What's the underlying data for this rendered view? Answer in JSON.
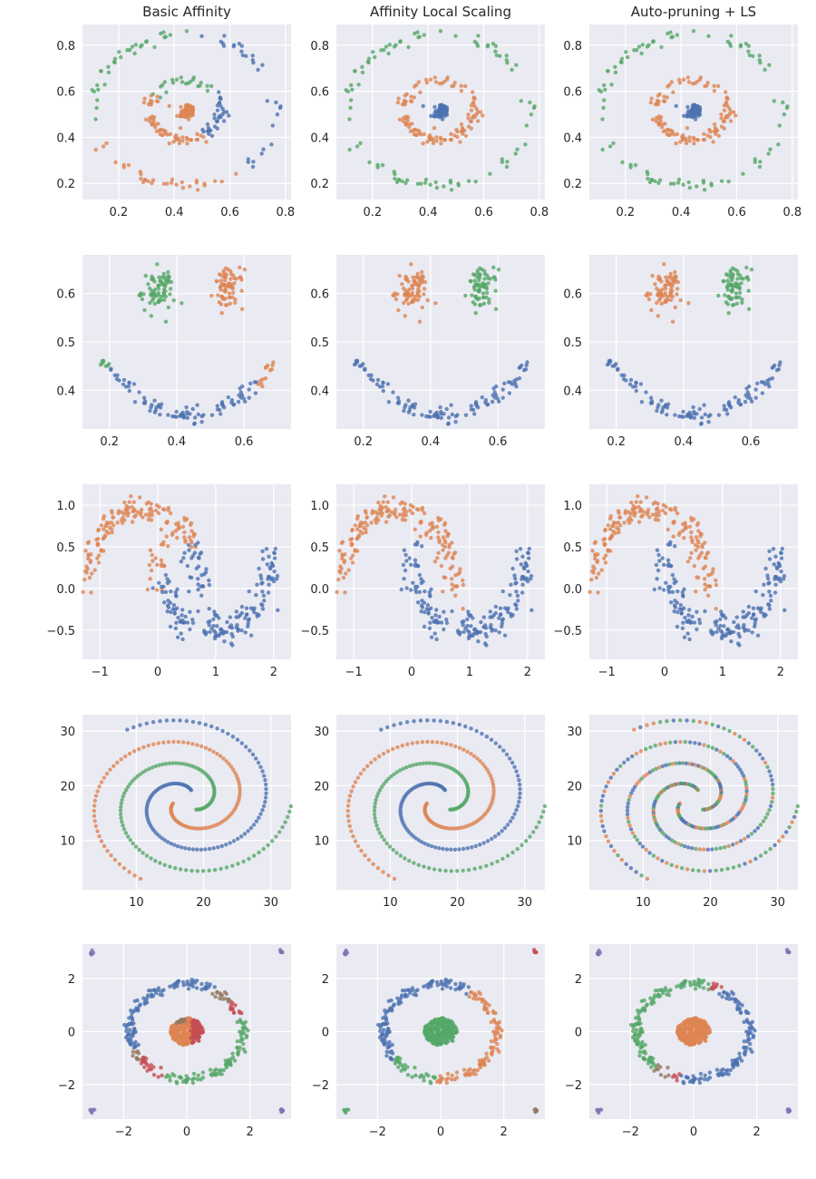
{
  "colors": {
    "background": "#EAEAF2",
    "grid": "#FFFFFF",
    "blue": "#4C72B0",
    "orange": "#DD8452",
    "green": "#55A868",
    "red": "#C44E52",
    "purple": "#8172B3",
    "brown": "#937860"
  },
  "chart_data": {
    "type": "scatter",
    "grid": true,
    "column_titles": [
      "Basic Affinity",
      "Affinity Local Scaling",
      "Auto-pruning + LS"
    ],
    "rows": [
      {
        "dataset": "concentric rings with central blob",
        "xlim": [
          0.07,
          0.82
        ],
        "ylim": [
          0.13,
          0.89
        ],
        "xticks": [
          "0.2",
          "0.4",
          "0.6",
          "0.8"
        ],
        "yticks": [
          "0.2",
          "0.4",
          "0.6",
          "0.8"
        ],
        "panels": [
          {
            "title": "Basic Affinity",
            "clusters": [
              {
                "color": "blue",
                "region": "center blob + right half of inner ring + right arc of outer ring"
              },
              {
                "color": "orange",
                "region": "lower-left arc of outer ring + lower half of inner ring + center blob"
              },
              {
                "color": "green",
                "region": "upper-left arc of outer ring + top of inner ring"
              }
            ]
          },
          {
            "title": "Affinity Local Scaling",
            "clusters": [
              {
                "color": "blue",
                "region": "center blob"
              },
              {
                "color": "orange",
                "region": "inner ring"
              },
              {
                "color": "green",
                "region": "outer ring"
              }
            ]
          },
          {
            "title": "Auto-pruning + LS",
            "clusters": [
              {
                "color": "blue",
                "region": "center blob"
              },
              {
                "color": "orange",
                "region": "inner ring"
              },
              {
                "color": "green",
                "region": "outer ring"
              }
            ]
          }
        ]
      },
      {
        "dataset": "smile: two blobs above a U-shaped arc",
        "xlim": [
          0.12,
          0.74
        ],
        "ylim": [
          0.32,
          0.68
        ],
        "xticks": [
          "0.2",
          "0.4",
          "0.6"
        ],
        "yticks": [
          "0.4",
          "0.5",
          "0.6"
        ],
        "panels": [
          {
            "title": "Basic Affinity",
            "clusters": [
              {
                "color": "blue",
                "region": "bottom of arc"
              },
              {
                "color": "orange",
                "region": "right blob (0.55,0.61) + right arm of arc"
              },
              {
                "color": "green",
                "region": "left blob (0.34,0.60) + left arm of arc"
              }
            ]
          },
          {
            "title": "Affinity Local Scaling",
            "clusters": [
              {
                "color": "blue",
                "region": "whole arc"
              },
              {
                "color": "orange",
                "region": "left blob (0.34,0.60)"
              },
              {
                "color": "green",
                "region": "right blob (0.55,0.61)"
              }
            ]
          },
          {
            "title": "Auto-pruning + LS",
            "clusters": [
              {
                "color": "blue",
                "region": "whole arc"
              },
              {
                "color": "orange",
                "region": "left blob (0.34,0.60)"
              },
              {
                "color": "green",
                "region": "right blob (0.55,0.61)"
              }
            ]
          }
        ]
      },
      {
        "dataset": "two interleaving moons",
        "xlim": [
          -1.3,
          2.3
        ],
        "ylim": [
          -0.85,
          1.25
        ],
        "xticks": [
          "−1",
          "0",
          "1",
          "2"
        ],
        "yticks": [
          "−0.5",
          "0.0",
          "0.5",
          "1.0"
        ],
        "panels": [
          {
            "title": "Basic Affinity",
            "clusters": [
              {
                "color": "orange",
                "region": "upper moon minus its right tip"
              },
              {
                "color": "blue",
                "region": "lower moon plus upper moon's right tip"
              }
            ]
          },
          {
            "title": "Affinity Local Scaling",
            "clusters": [
              {
                "color": "orange",
                "region": "upper moon"
              },
              {
                "color": "blue",
                "region": "lower moon"
              }
            ]
          },
          {
            "title": "Auto-pruning + LS",
            "clusters": [
              {
                "color": "orange",
                "region": "upper moon"
              },
              {
                "color": "blue",
                "region": "lower moon"
              }
            ]
          }
        ]
      },
      {
        "dataset": "three interleaved spirals",
        "xlim": [
          2,
          33
        ],
        "ylim": [
          1,
          33
        ],
        "xticks": [
          "10",
          "20",
          "30"
        ],
        "yticks": [
          "10",
          "20",
          "30"
        ],
        "panels": [
          {
            "title": "Basic Affinity",
            "clusters": [
              {
                "color": "blue",
                "region": "spiral 1"
              },
              {
                "color": "orange",
                "region": "spiral 2"
              },
              {
                "color": "green",
                "region": "spiral 3"
              }
            ]
          },
          {
            "title": "Affinity Local Scaling",
            "clusters": [
              {
                "color": "blue",
                "region": "spiral 1"
              },
              {
                "color": "orange",
                "region": "spiral 2"
              },
              {
                "color": "green",
                "region": "spiral 3"
              }
            ]
          },
          {
            "title": "Auto-pruning + LS",
            "clusters": [
              {
                "color": "mixed",
                "region": "all spirals, labels interleaved blue/orange/green"
              }
            ]
          }
        ]
      },
      {
        "dataset": "ring around a dense core with four corner outliers",
        "xlim": [
          -3.3,
          3.3
        ],
        "ylim": [
          -3.3,
          3.3
        ],
        "xticks": [
          "−2",
          "0",
          "2"
        ],
        "yticks": [
          "−2",
          "0",
          "2"
        ],
        "panels": [
          {
            "title": "Basic Affinity",
            "clusters": [
              {
                "color": "blue",
                "region": "upper-left and left of ring"
              },
              {
                "color": "green",
                "region": "right and bottom of ring"
              },
              {
                "color": "red",
                "region": "top-right and bottom-left ring segments + core right half"
              },
              {
                "color": "brown",
                "region": "small ring segments + core top"
              },
              {
                "color": "orange",
                "region": "core centre"
              },
              {
                "color": "purple",
                "region": "four corner outliers"
              }
            ]
          },
          {
            "title": "Affinity Local Scaling",
            "clusters": [
              {
                "color": "blue",
                "region": "upper-left half of ring"
              },
              {
                "color": "orange",
                "region": "right and bottom of ring"
              },
              {
                "color": "green",
                "region": "core + bottom-left of ring + bottom-left outlier"
              },
              {
                "color": "red",
                "region": "top-right outlier"
              },
              {
                "color": "purple",
                "region": "top-left outlier"
              },
              {
                "color": "brown",
                "region": "bottom-right outlier"
              }
            ]
          },
          {
            "title": "Auto-pruning + LS",
            "clusters": [
              {
                "color": "green",
                "region": "left and top of ring"
              },
              {
                "color": "blue",
                "region": "right and bottom of ring"
              },
              {
                "color": "orange",
                "region": "core"
              },
              {
                "color": "red",
                "region": "small segments at top and bottom"
              },
              {
                "color": "brown",
                "region": "small segment at bottom-left"
              },
              {
                "color": "purple",
                "region": "four corner outliers"
              }
            ]
          }
        ]
      }
    ]
  }
}
